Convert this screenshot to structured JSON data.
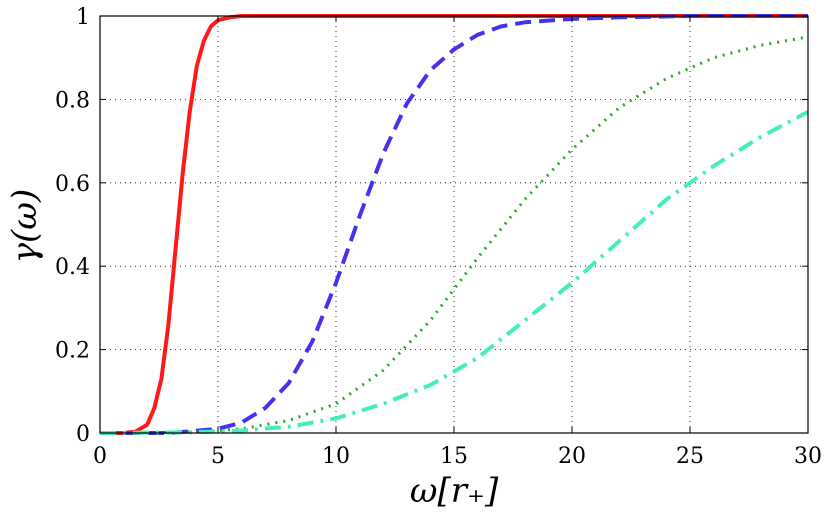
{
  "chart_data": {
    "type": "line",
    "title": "",
    "xlabel": "ω[r₊]",
    "ylabel": "γ(ω)",
    "xlim": [
      0,
      30
    ],
    "ylim": [
      0,
      1
    ],
    "xticks": [
      0,
      5,
      10,
      15,
      20,
      25,
      30
    ],
    "yticks": [
      0,
      0.2,
      0.4,
      0.6,
      0.8,
      1
    ],
    "ytick_labels": [
      "0",
      "0.2",
      "0.4",
      "0.6",
      "0.8",
      "1"
    ],
    "grid": true,
    "series": [
      {
        "color": "#ff1a1a",
        "dash": "solid",
        "x": [
          0,
          1.0,
          1.5,
          2.0,
          2.3,
          2.6,
          2.9,
          3.2,
          3.5,
          3.8,
          4.1,
          4.4,
          4.7,
          5.0,
          5.5,
          6.0,
          7.0,
          10,
          15,
          20,
          25,
          30
        ],
        "y": [
          0.0,
          0.0,
          0.003,
          0.02,
          0.06,
          0.13,
          0.26,
          0.44,
          0.62,
          0.77,
          0.88,
          0.94,
          0.975,
          0.99,
          0.997,
          1.0,
          1.0,
          1.0,
          1.0,
          1.0,
          1.0,
          1.0
        ]
      },
      {
        "color": "#4433ee",
        "dash": "dashed",
        "x": [
          0,
          3,
          5,
          6,
          7,
          8,
          9,
          10,
          11,
          12,
          13,
          14,
          15,
          16,
          17,
          18,
          20,
          22,
          25,
          30
        ],
        "y": [
          0.0,
          0.0,
          0.01,
          0.025,
          0.06,
          0.12,
          0.22,
          0.36,
          0.52,
          0.67,
          0.79,
          0.87,
          0.92,
          0.955,
          0.975,
          0.985,
          0.993,
          0.997,
          1.0,
          1.0
        ]
      },
      {
        "color": "#22aa22",
        "dash": "dotted",
        "x": [
          0,
          4,
          6,
          8,
          10,
          12,
          14,
          16,
          18,
          20,
          22,
          24,
          26,
          28,
          30
        ],
        "y": [
          0.0,
          0.002,
          0.01,
          0.03,
          0.07,
          0.15,
          0.27,
          0.42,
          0.56,
          0.68,
          0.78,
          0.85,
          0.9,
          0.93,
          0.95
        ]
      },
      {
        "color": "#44eebb",
        "dash": "dashdot",
        "x": [
          0,
          4,
          6,
          8,
          10,
          12,
          14,
          16,
          18,
          20,
          22,
          24,
          26,
          28,
          30
        ],
        "y": [
          0.0,
          0.002,
          0.006,
          0.015,
          0.035,
          0.07,
          0.115,
          0.18,
          0.27,
          0.36,
          0.46,
          0.56,
          0.64,
          0.71,
          0.77
        ]
      }
    ]
  }
}
